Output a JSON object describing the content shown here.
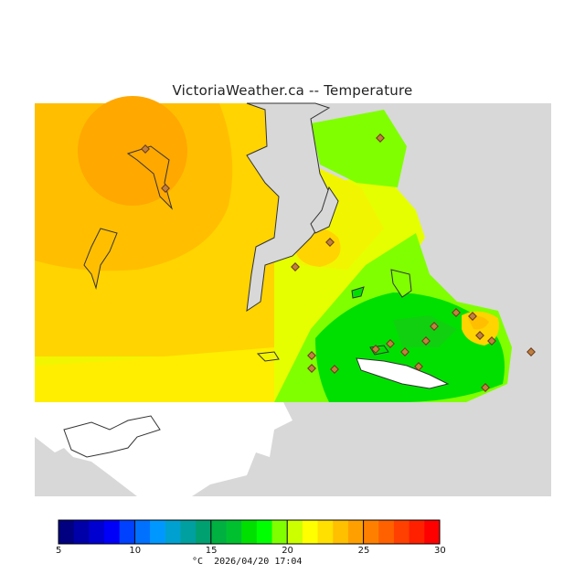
{
  "title": "VictoriaWeather.ca -- Temperature",
  "colorbar": {
    "ticks": [
      "5",
      "10",
      "15",
      "20",
      "25",
      "30"
    ],
    "colors": [
      "#000080",
      "#0000a8",
      "#0000d0",
      "#0000f8",
      "#0040ff",
      "#0070ff",
      "#0098ff",
      "#00a0d0",
      "#00a0a0",
      "#00a070",
      "#00b040",
      "#00c030",
      "#00e000",
      "#00ff00",
      "#80ff00",
      "#ccff00",
      "#ffff00",
      "#ffe000",
      "#ffc000",
      "#ffa000",
      "#ff8000",
      "#ff6000",
      "#ff4000",
      "#ff2000",
      "#ff0000"
    ]
  },
  "unit": "°C",
  "timestamp": "2026/04/20 17:04",
  "colors": {
    "no_data": "#d8d8d8",
    "land_outline": "#333333",
    "station_marker": "#c08040"
  }
}
